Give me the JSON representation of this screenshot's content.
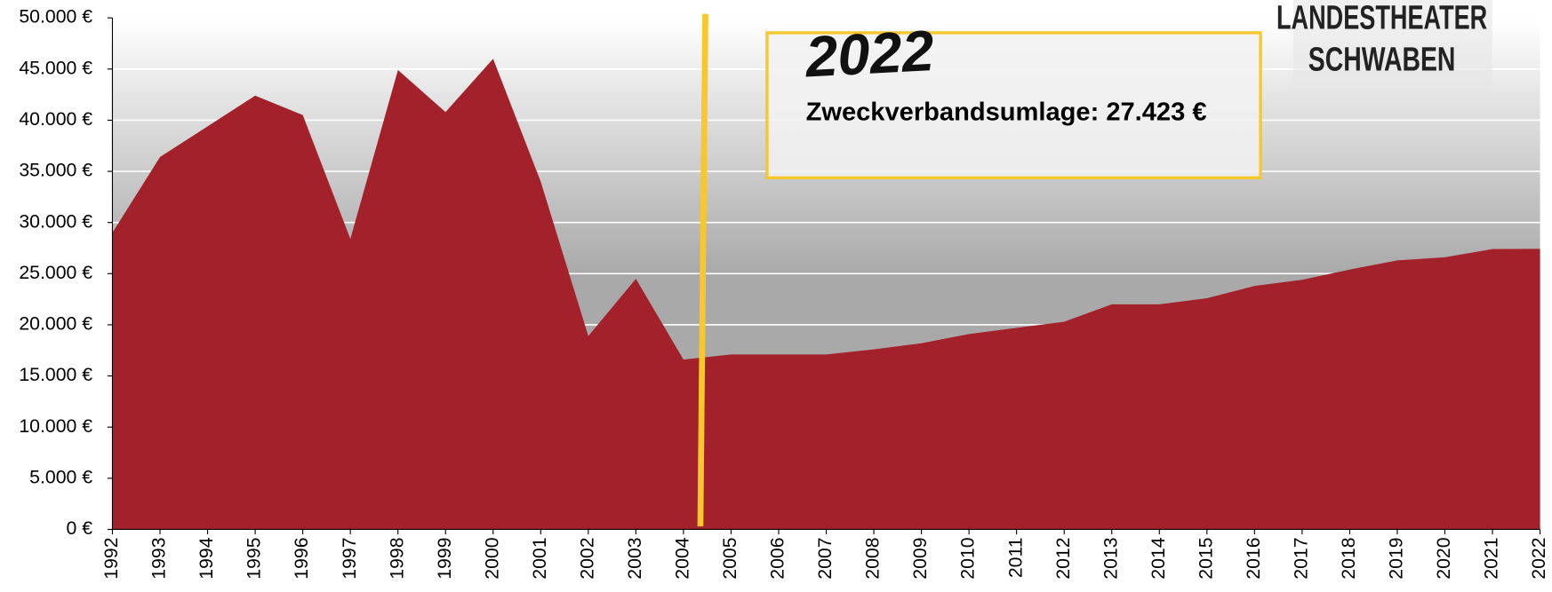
{
  "chart_data": {
    "type": "area",
    "categories": [
      "1992",
      "1993",
      "1994",
      "1995",
      "1996",
      "1997",
      "1998",
      "1999",
      "2000",
      "2001",
      "2002",
      "2003",
      "2004",
      "2005",
      "2006",
      "2007",
      "2008",
      "2009",
      "2010",
      "2011",
      "2012",
      "2013",
      "2014",
      "2015",
      "2016",
      "2017",
      "2018",
      "2019",
      "2020",
      "2021",
      "2022"
    ],
    "values": [
      29000,
      36400,
      39400,
      42400,
      40500,
      28400,
      44900,
      40800,
      46000,
      34000,
      18900,
      24500,
      16600,
      17100,
      17100,
      17100,
      17600,
      18200,
      19100,
      19700,
      20300,
      22000,
      22000,
      22600,
      23800,
      24400,
      25400,
      26300,
      26600,
      27400,
      27423
    ],
    "color": "#a3212b",
    "ylim": [
      0,
      50000
    ],
    "yticks": [
      {
        "value": 0,
        "label": "0 €"
      },
      {
        "value": 5000,
        "label": "5.000 €"
      },
      {
        "value": 10000,
        "label": "10.000 €"
      },
      {
        "value": 15000,
        "label": "15.000 €"
      },
      {
        "value": 20000,
        "label": "20.000 €"
      },
      {
        "value": 25000,
        "label": "25.000 €"
      },
      {
        "value": 30000,
        "label": "30.000 €"
      },
      {
        "value": 35000,
        "label": "35.000 €"
      },
      {
        "value": 40000,
        "label": "40.000 €"
      },
      {
        "value": 45000,
        "label": "45.000 €"
      },
      {
        "value": 50000,
        "label": "50.000 €"
      }
    ],
    "grid": true,
    "annotations": [
      "2022",
      "Zweckverbandsumlage: 27.423 €"
    ],
    "logo": [
      "LANDESTHEATER",
      "SCHWABEN"
    ]
  }
}
